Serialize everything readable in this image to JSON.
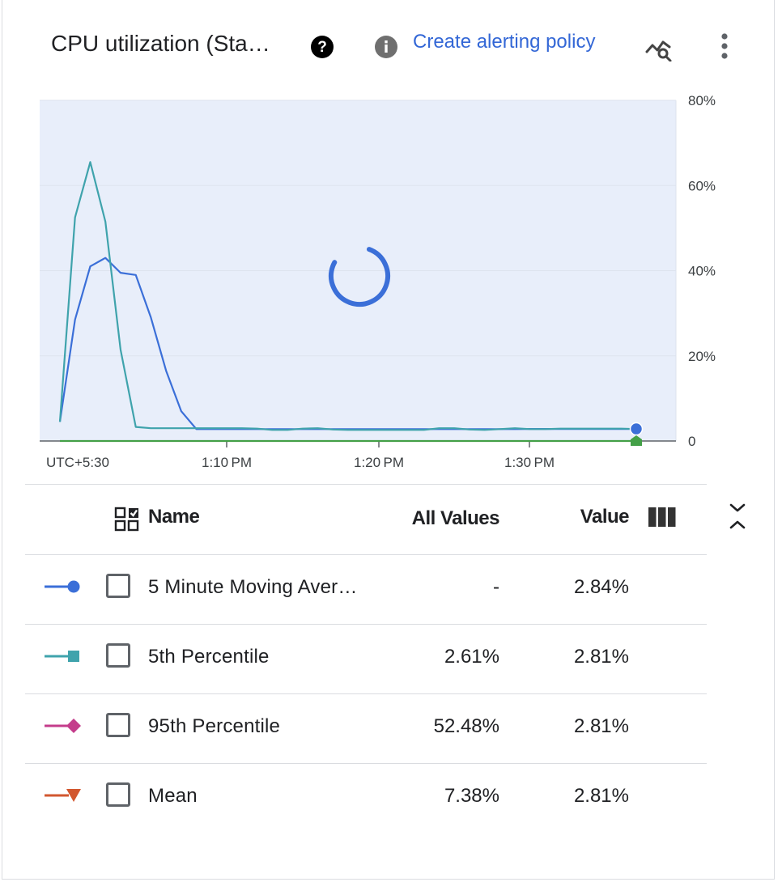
{
  "header": {
    "title": "CPU utilization (Sta…",
    "alert_link": "Create alerting policy",
    "icons": [
      "help-icon",
      "info-icon",
      "explore-icon",
      "more-vert-icon"
    ]
  },
  "chart_data": {
    "type": "line",
    "y_ticks": [
      "80%",
      "60%",
      "40%",
      "20%",
      "0"
    ],
    "x_ticks": [
      "UTC+5:30",
      "1:10 PM",
      "1:20 PM",
      "1:30 PM"
    ],
    "ylim": [
      0,
      80
    ],
    "loading_spinner": true,
    "series": [
      {
        "name": "5 Minute Moving Aver…",
        "color": "#3b6fd8",
        "marker": "circle",
        "x": [
          0,
          1,
          2,
          3,
          4,
          5,
          6,
          7,
          8,
          9,
          10,
          11,
          12,
          13,
          14,
          15,
          16,
          17,
          18,
          19,
          20,
          21,
          22,
          23,
          24,
          25,
          26,
          27,
          28,
          29,
          30,
          31,
          32,
          33,
          34,
          35,
          36,
          37,
          38
        ],
        "y": [
          4.5,
          28.5,
          41,
          43,
          39.5,
          39,
          29,
          16.5,
          7,
          2.8,
          2.8,
          2.8,
          2.8,
          2.8,
          2.8,
          2.8,
          2.8,
          2.8,
          2.8,
          2.8,
          2.8,
          2.8,
          2.8,
          2.8,
          2.8,
          2.8,
          2.8,
          2.8,
          2.8,
          2.8,
          2.8,
          2.84,
          2.84,
          2.84,
          2.84,
          2.84,
          2.84,
          2.84,
          2.84
        ]
      },
      {
        "name": "5th Percentile",
        "color": "#3fa3ac",
        "marker": "square",
        "x": [
          0,
          1,
          2,
          3,
          4,
          5,
          6,
          7,
          8,
          9,
          10,
          11,
          12,
          13,
          14,
          15,
          16,
          17,
          18,
          19,
          20,
          21,
          22,
          23,
          24,
          25,
          26,
          27,
          28,
          29,
          30,
          31,
          32,
          33,
          34,
          35,
          36,
          37,
          38
        ],
        "y": [
          4.5,
          52.5,
          65.5,
          51.5,
          21.5,
          3.3,
          3,
          3,
          3,
          3,
          3,
          3,
          3,
          2.9,
          2.6,
          2.6,
          2.9,
          3,
          2.7,
          2.6,
          2.6,
          2.6,
          2.6,
          2.6,
          2.6,
          3,
          3,
          2.7,
          2.6,
          2.8,
          3,
          2.8,
          2.8,
          2.9,
          2.9,
          2.9,
          2.9,
          2.9,
          2.81
        ]
      },
      {
        "name": "Mean",
        "color": "#43a047",
        "marker": "pentagon",
        "x": [
          0,
          38
        ],
        "y": [
          0,
          0
        ]
      }
    ]
  },
  "table": {
    "headers": {
      "name": "Name",
      "all_values": "All Values",
      "value": "Value"
    },
    "rows": [
      {
        "name": "5 Minute Moving Aver…",
        "all_values": "-",
        "value": "2.84%",
        "color": "#3b6fd8",
        "marker": "circle"
      },
      {
        "name": "5th Percentile",
        "all_values": "2.61%",
        "value": "2.81%",
        "color": "#3fa3ac",
        "marker": "square"
      },
      {
        "name": "95th Percentile",
        "all_values": "52.48%",
        "value": "2.81%",
        "color": "#c43c8b",
        "marker": "diamond"
      },
      {
        "name": "Mean",
        "all_values": "7.38%",
        "value": "2.81%",
        "color": "#d2572f",
        "marker": "triangle-down"
      }
    ]
  }
}
